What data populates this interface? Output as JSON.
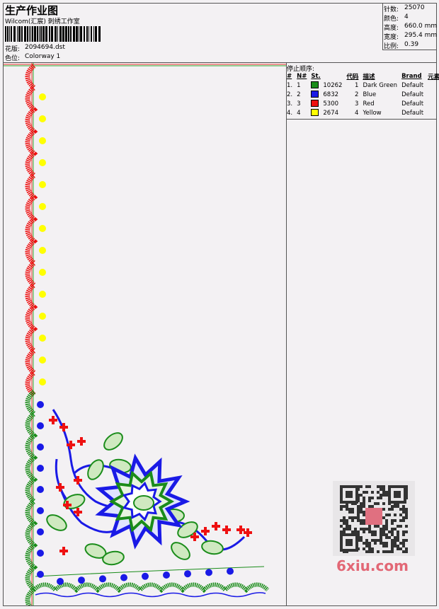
{
  "header": {
    "title": "生产作业图",
    "studio": "Wilcom(汇宸) 刺绣工作室",
    "design_label": "花版:",
    "design_value": "2094694.dst",
    "colorway_label": "色位:",
    "colorway_value": "Colorway 1"
  },
  "info": [
    {
      "label": "针数:",
      "value": "25070"
    },
    {
      "label": "颜色:",
      "value": "4"
    },
    {
      "label": "高度:",
      "value": "660.0 mm"
    },
    {
      "label": "宽度:",
      "value": "295.4 mm"
    },
    {
      "label": "比例:",
      "value": "0.39"
    }
  ],
  "stop_sequence": {
    "title": "停止顺序:",
    "columns": [
      "#",
      "N#",
      "St.",
      "代码",
      "描述",
      "Brand",
      "元素"
    ],
    "rows": [
      {
        "index": "1.",
        "needle": "1",
        "color": "#1a8c1a",
        "stitches": "10262",
        "code": "1",
        "description": "Dark Green",
        "brand": "Default"
      },
      {
        "index": "2.",
        "needle": "2",
        "color": "#1a1ae6",
        "stitches": "6832",
        "code": "2",
        "description": "Blue",
        "brand": "Default"
      },
      {
        "index": "3.",
        "needle": "3",
        "color": "#ee1111",
        "stitches": "5300",
        "code": "3",
        "description": "Red",
        "brand": "Default"
      },
      {
        "index": "4.",
        "needle": "4",
        "color": "#ffff00",
        "stitches": "2674",
        "code": "4",
        "description": "Yellow",
        "brand": "Default"
      }
    ]
  },
  "watermark": "6xiu.com"
}
